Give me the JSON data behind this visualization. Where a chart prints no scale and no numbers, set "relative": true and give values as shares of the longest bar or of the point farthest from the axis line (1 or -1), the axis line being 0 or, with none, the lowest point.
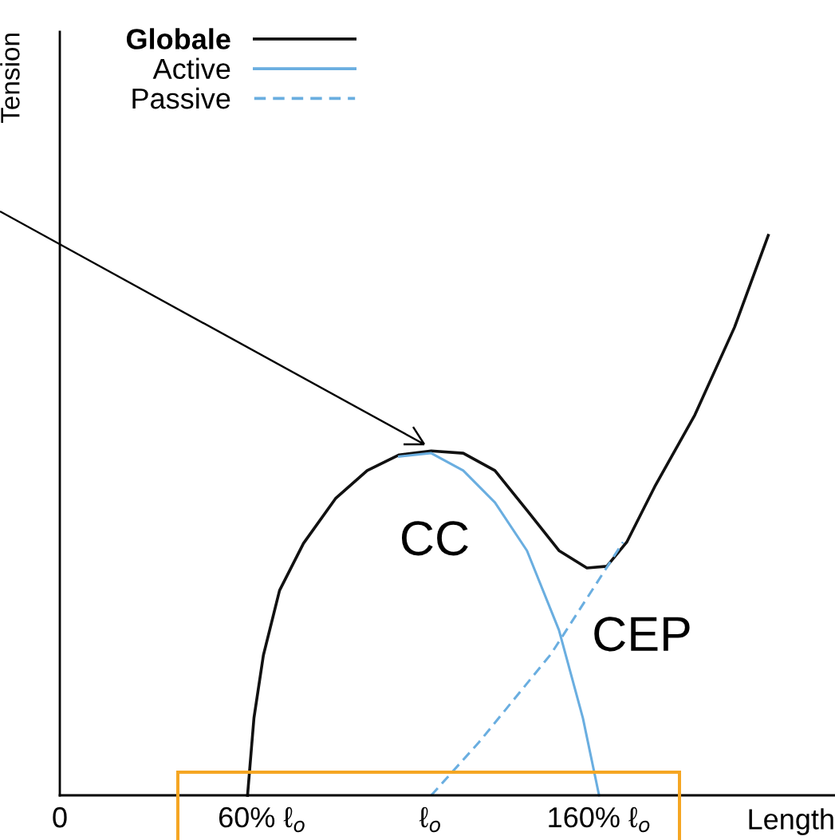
{
  "chart_data": {
    "type": "line",
    "relative": true,
    "xlabel": "Length",
    "ylabel": "Tension",
    "xlim": [
      0,
      230
    ],
    "xticks": [
      {
        "value": 0,
        "label": "0"
      },
      {
        "value": 60,
        "label": "60% ℓ$_{o}$"
      },
      {
        "value": 110,
        "label": "ℓ$_{o}$"
      },
      {
        "value": 160,
        "label": "160% ℓ$_{o}$"
      }
    ],
    "grid": false,
    "legend": "top left",
    "marker": "none",
    "series": [
      {
        "name": "Globale",
        "color": "#111111",
        "line_style": "solid",
        "x": [
          55.7,
          57.6,
          60.4,
          65.2,
          72.3,
          81.8,
          91.2,
          100.7,
          110.2,
          119.7,
          129.1,
          138.6,
          148.1,
          156.4,
          162.3,
          168.2,
          176.5,
          188.4,
          200.2,
          210.2
        ],
        "values": [
          0,
          0.138,
          0.25,
          0.366,
          0.45,
          0.53,
          0.58,
          0.608,
          0.615,
          0.611,
          0.58,
          0.509,
          0.437,
          0.406,
          0.409,
          0.452,
          0.551,
          0.679,
          0.836,
          1
        ]
      },
      {
        "name": "Active",
        "color": "#6aaee0",
        "line_style": "solid",
        "x": [
          100.7,
          110.2,
          119.7,
          129.1,
          138.6,
          148.1,
          155.2,
          160
        ],
        "values": [
          0.605,
          0.611,
          0.58,
          0.523,
          0.437,
          0.295,
          0.138,
          0
        ]
      },
      {
        "name": "Passive",
        "color": "#6aaee0",
        "line_style": "dashed",
        "x": [
          110.2,
          124.4,
          145.7,
          167.1
        ],
        "values": [
          0,
          0.095,
          0.252,
          0.452
        ]
      }
    ],
    "annotations": [
      "CC",
      "CEP"
    ]
  }
}
